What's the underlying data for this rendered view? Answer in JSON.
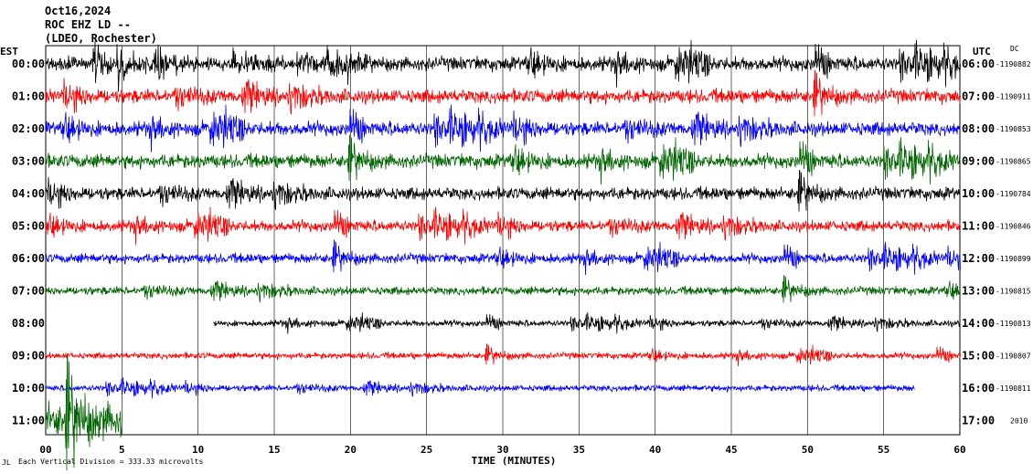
{
  "header": {
    "date": "Oct16,2024",
    "station": "ROC EHZ LD --",
    "network": "(LDEO, Rochester)"
  },
  "footer": {
    "scale_note": "Each Vertical Division = 333.33 microvolts",
    "mark": "JL"
  },
  "colors": {
    "black": "#000000",
    "red": "#ff0000",
    "blue": "#0000ff",
    "green": "#006400"
  },
  "chart_data": {
    "type": "line",
    "title": "",
    "xlabel": "TIME (MINUTES)",
    "ylabel": "",
    "left_axis_label": "EST",
    "right_axis_label": "UTC",
    "right_top_label": "DC",
    "xlim": [
      0,
      60
    ],
    "x_ticks": [
      "00",
      "5",
      "10",
      "15",
      "20",
      "25",
      "30",
      "35",
      "40",
      "45",
      "50",
      "55",
      "60"
    ],
    "x_tick_values": [
      0,
      5,
      10,
      15,
      20,
      25,
      30,
      35,
      40,
      45,
      50,
      55,
      60
    ],
    "grid": true,
    "series": [
      {
        "est": "00:00",
        "utc": "06:00",
        "dc": "-1190882",
        "color": "black",
        "start": 0,
        "end": 60,
        "amp": 1.0
      },
      {
        "est": "01:00",
        "utc": "07:00",
        "dc": "-1190911",
        "color": "red",
        "start": 0,
        "end": 60,
        "amp": 1.0
      },
      {
        "est": "02:00",
        "utc": "08:00",
        "dc": "-1190853",
        "color": "blue",
        "start": 0,
        "end": 60,
        "amp": 1.0
      },
      {
        "est": "03:00",
        "utc": "09:00",
        "dc": "-1190865",
        "color": "green",
        "start": 0,
        "end": 60,
        "amp": 1.0
      },
      {
        "est": "04:00",
        "utc": "10:00",
        "dc": "-1190784",
        "color": "black",
        "start": 0,
        "end": 60,
        "amp": 0.9
      },
      {
        "est": "05:00",
        "utc": "11:00",
        "dc": "-1190846",
        "color": "red",
        "start": 0,
        "end": 60,
        "amp": 0.8
      },
      {
        "est": "06:00",
        "utc": "12:00",
        "dc": "-1190899",
        "color": "blue",
        "start": 0,
        "end": 60,
        "amp": 0.7
      },
      {
        "est": "07:00",
        "utc": "13:00",
        "dc": "-1190815",
        "color": "green",
        "start": 0,
        "end": 60,
        "amp": 0.6
      },
      {
        "est": "08:00",
        "utc": "14:00",
        "dc": "-1190813",
        "color": "black",
        "start": 11,
        "end": 60,
        "amp": 0.45
      },
      {
        "est": "09:00",
        "utc": "15:00",
        "dc": "-1190807",
        "color": "red",
        "start": 0,
        "end": 60,
        "amp": 0.45
      },
      {
        "est": "10:00",
        "utc": "16:00",
        "dc": "-1190811",
        "color": "blue",
        "start": 0,
        "end": 57,
        "amp": 0.45
      },
      {
        "est": "11:00",
        "utc": "17:00",
        "dc": "2010",
        "color": "green",
        "start": 0,
        "end": 5,
        "amp": 2.5
      }
    ]
  }
}
